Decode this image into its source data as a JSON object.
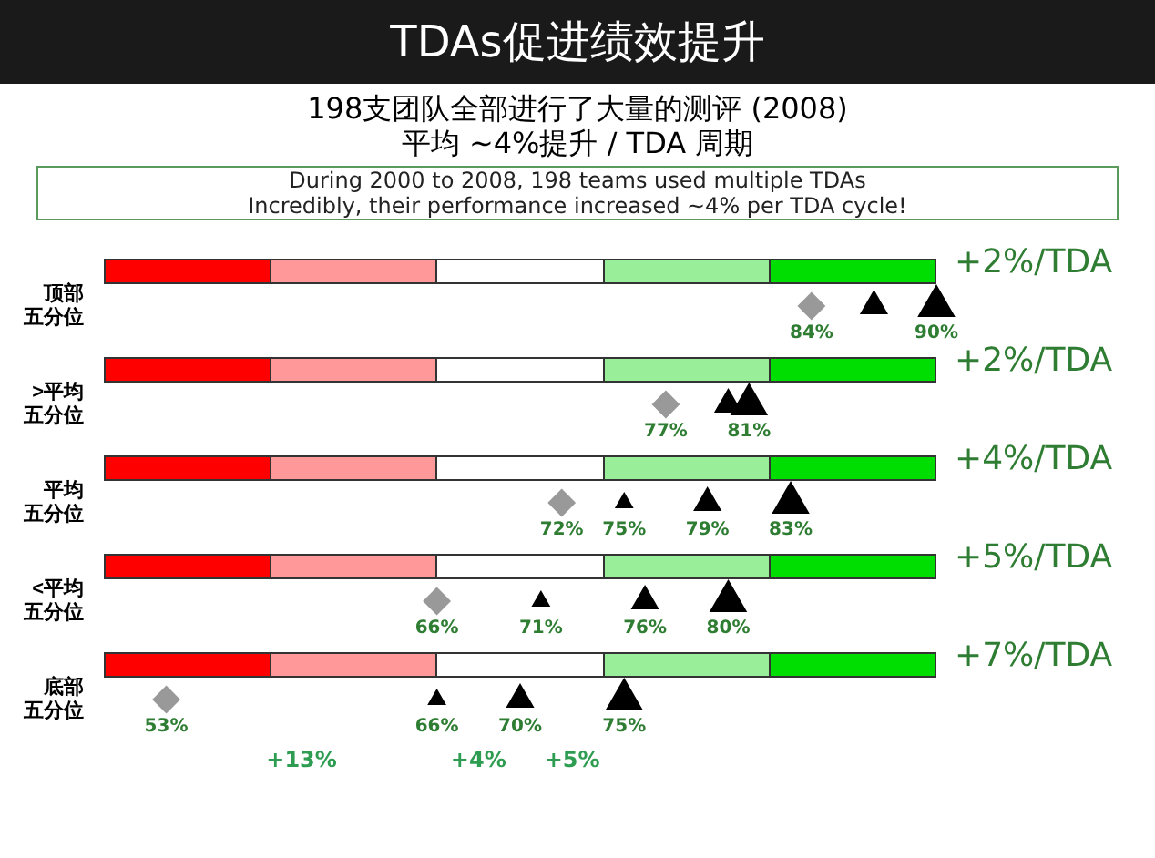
{
  "chart_data": {
    "type": "scatter",
    "title": "TDAs促进绩效提升",
    "subtitle": "198支团队全部进行了大量的测评 (2008)\n平均 ~4%提升 / TDA 周期",
    "orientation": "horizontal",
    "categories": [
      "顶部五分位",
      ">平均五分位",
      "平均五分位",
      "<平均五分位",
      "底部五分位"
    ],
    "series": [
      {
        "color": "#999999",
        "marker": "diamond",
        "values": [
          84,
          77,
          72,
          66,
          53
        ],
        "value_labels": [
          "84%",
          "77%",
          "72%",
          "66%",
          "53%"
        ]
      },
      {
        "color": "#000000",
        "marker": "triangle",
        "values": [
          null,
          null,
          75,
          71,
          66
        ],
        "value_labels": [
          null,
          null,
          "75%",
          "71%",
          "66%"
        ]
      },
      {
        "color": "#000000",
        "marker": "triangle",
        "values": [
          87,
          80,
          79,
          76,
          70
        ],
        "value_labels": [
          null,
          null,
          "79%",
          "76%",
          "70%"
        ]
      },
      {
        "color": "#000000",
        "marker": "triangle",
        "values": [
          90,
          81,
          83,
          80,
          75
        ],
        "value_labels": [
          "90%",
          "81%",
          "83%",
          "80%",
          "75%"
        ]
      }
    ],
    "tick_labels": false,
    "annotations": [
      "During 2000 to 2008, 198 teams used multiple TDAs\nIncredibly, their performance increased ~4% per TDA cycle!",
      "+2%/TDA",
      "+2%/TDA",
      "+4%/TDA",
      "+5%/TDA",
      "+7%/TDA",
      "+13%",
      "+4%",
      "+5%"
    ]
  }
}
